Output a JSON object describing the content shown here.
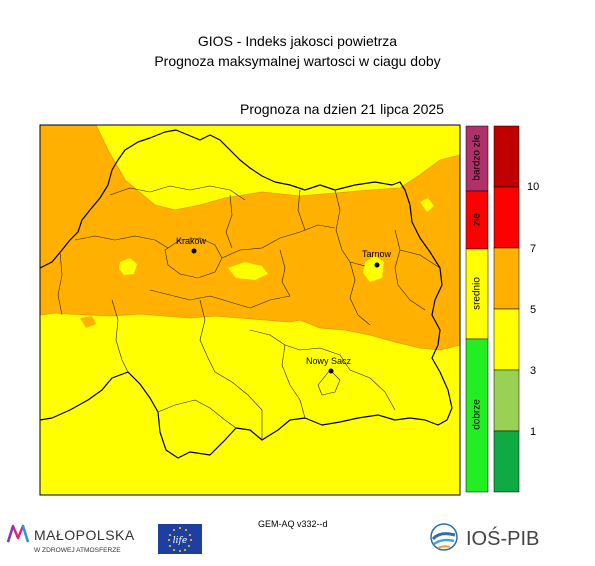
{
  "header": {
    "title": "GIOS - Indeks jakosci powietrza",
    "subtitle": "Prognoza maksymalnej wartosci w ciagu doby",
    "forecast_date": "Prognoza na dzien  21 lipca 2025"
  },
  "cities": [
    {
      "name": "Krakow"
    },
    {
      "name": "Tarnow"
    },
    {
      "name": "Nowy Sacz"
    }
  ],
  "legend": {
    "categories": [
      {
        "label": "dobrze",
        "color": "#22ee22"
      },
      {
        "label": "srednio",
        "color": "#ffff00"
      },
      {
        "label": "zle",
        "color": "#ff0000"
      },
      {
        "label": "bardzo zle",
        "color": "#b0306a"
      }
    ],
    "scale": [
      {
        "color": "#0faa44"
      },
      {
        "color": "#99d155"
      },
      {
        "color": "#ffff00"
      },
      {
        "color": "#ffb000"
      },
      {
        "color": "#ff0000"
      },
      {
        "color": "#c00000"
      }
    ],
    "ticks": [
      "1",
      "3",
      "5",
      "7",
      "10"
    ]
  },
  "map_colors": {
    "level_4": "#ffff00",
    "level_5": "#ffb000",
    "border": "#000000"
  },
  "footer": {
    "model": "GEM-AQ v332--d",
    "malopolska_name": "MAŁOPOLSKA",
    "malopolska_tagline": "W ZDROWEJ ATMOSFERZE",
    "eu_text": "life",
    "ios_name": "IOŚ-PIB"
  }
}
